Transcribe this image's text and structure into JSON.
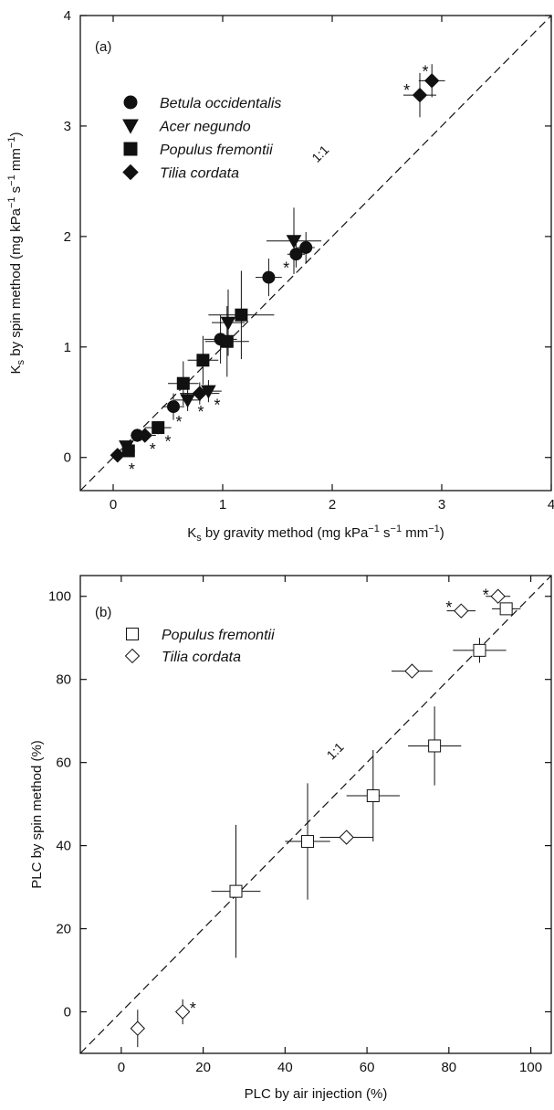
{
  "chart_data": [
    {
      "type": "scatter",
      "panel_label": "(a)",
      "xlabel": {
        "pre": "K",
        "sub": "s",
        "post": " by gravity method (mg kPa",
        "sup1": "−1",
        "mid": " s",
        "sup2": "−1",
        "end": " mm",
        "sup3": "−1",
        "close": ")"
      },
      "ylabel": {
        "pre": "K",
        "sub": "s",
        "post": " by spin method (mg kPa",
        "sup1": "−1",
        "mid": " s",
        "sup2": "−1",
        "end": " mm",
        "sup3": "−1",
        "close": ")"
      },
      "xlim": [
        -0.3,
        4
      ],
      "ylim": [
        -0.3,
        4
      ],
      "xticks": [
        0,
        1,
        2,
        3,
        4
      ],
      "yticks": [
        0,
        1,
        2,
        3,
        4
      ],
      "xtick_labels": [
        "0",
        "1",
        "2",
        "3",
        "4"
      ],
      "ytick_labels": [
        "0",
        "1",
        "2",
        "3",
        "4"
      ],
      "reference_line_label": "1:1",
      "reference_label_at": [
        1.92,
        2.72
      ],
      "legend_placement": "top-left",
      "series": [
        {
          "name": "Betula occidentalis",
          "marker": "circle-filled",
          "points": [
            {
              "x": 0.22,
              "y": 0.2,
              "xerr": 0.06,
              "yerr": 0.06
            },
            {
              "x": 0.55,
              "y": 0.46,
              "xerr": 0.1,
              "yerr": 0.12
            },
            {
              "x": 0.98,
              "y": 1.07,
              "xerr": 0.15,
              "yerr": 0.22
            },
            {
              "x": 1.42,
              "y": 1.63,
              "xerr": 0.12,
              "yerr": 0.17
            },
            {
              "x": 1.67,
              "y": 1.84,
              "xerr": 0.08,
              "yerr": 0.12
            },
            {
              "x": 1.76,
              "y": 1.9,
              "xerr": 0.08,
              "yerr": 0.14
            }
          ]
        },
        {
          "name": "Acer negundo",
          "marker": "triangle-down-filled",
          "points": [
            {
              "x": 0.12,
              "y": 0.1,
              "xerr": 0.04,
              "yerr": 0.04
            },
            {
              "x": 0.68,
              "y": 0.52,
              "xerr": 0.12,
              "yerr": 0.1
            },
            {
              "x": 0.87,
              "y": 0.6,
              "xerr": 0.12,
              "yerr": 0.1
            },
            {
              "x": 1.05,
              "y": 1.22,
              "xerr": 0.15,
              "yerr": 0.3
            },
            {
              "x": 1.65,
              "y": 1.96,
              "xerr": 0.25,
              "yerr": 0.3
            }
          ]
        },
        {
          "name": "Populus fremontii",
          "marker": "square-filled",
          "points": [
            {
              "x": 0.14,
              "y": 0.06,
              "xerr": 0.06,
              "yerr": 0.05
            },
            {
              "x": 0.41,
              "y": 0.27,
              "xerr": 0.12,
              "yerr": 0.06
            },
            {
              "x": 0.64,
              "y": 0.67,
              "xerr": 0.14,
              "yerr": 0.2
            },
            {
              "x": 0.82,
              "y": 0.88,
              "xerr": 0.14,
              "yerr": 0.22
            },
            {
              "x": 1.04,
              "y": 1.05,
              "xerr": 0.2,
              "yerr": 0.32
            },
            {
              "x": 1.17,
              "y": 1.29,
              "xerr": 0.3,
              "yerr": 0.4
            }
          ]
        },
        {
          "name": "Tilia cordata",
          "marker": "diamond-filled",
          "points": [
            {
              "x": 0.04,
              "y": 0.02,
              "xerr": 0.05,
              "yerr": 0.04
            },
            {
              "x": 0.29,
              "y": 0.2,
              "xerr": 0.1,
              "yerr": 0.05
            },
            {
              "x": 0.79,
              "y": 0.58,
              "xerr": 0.18,
              "yerr": 0.1
            },
            {
              "x": 2.8,
              "y": 3.28,
              "xerr": 0.15,
              "yerr": 0.2
            },
            {
              "x": 2.91,
              "y": 3.41,
              "xerr": 0.12,
              "yerr": 0.15
            }
          ]
        }
      ],
      "annotations": [
        {
          "text": "*",
          "x": 0.17,
          "y": -0.1
        },
        {
          "text": "*",
          "x": 0.36,
          "y": 0.08
        },
        {
          "text": "*",
          "x": 0.5,
          "y": 0.15
        },
        {
          "text": "*",
          "x": 0.6,
          "y": 0.33
        },
        {
          "text": "*",
          "x": 0.8,
          "y": 0.42
        },
        {
          "text": "*",
          "x": 0.95,
          "y": 0.48
        },
        {
          "text": "*",
          "x": 1.58,
          "y": 1.72
        },
        {
          "text": "*",
          "x": 2.68,
          "y": 3.33
        },
        {
          "text": "*",
          "x": 2.85,
          "y": 3.5
        }
      ]
    },
    {
      "type": "scatter",
      "panel_label": "(b)",
      "xlabel": "PLC by air injection (%)",
      "ylabel": "PLC by spin method (%)",
      "xlim": [
        -10,
        105
      ],
      "ylim": [
        -10,
        105
      ],
      "xticks": [
        0,
        20,
        40,
        60,
        80,
        100
      ],
      "yticks": [
        0,
        20,
        40,
        60,
        80,
        100
      ],
      "xtick_labels": [
        "0",
        "20",
        "40",
        "60",
        "80",
        "100"
      ],
      "ytick_labels": [
        "0",
        "20",
        "40",
        "60",
        "80",
        "100"
      ],
      "reference_line_label": "1:1",
      "reference_label_at": [
        53,
        62
      ],
      "legend_placement": "top-left",
      "series": [
        {
          "name": "Populus fremontii",
          "marker": "square-open",
          "points": [
            {
              "x": 28,
              "y": 29,
              "xerr": 6,
              "yerr": 16
            },
            {
              "x": 45.5,
              "y": 41,
              "xerr": 5.5,
              "yerr": 14
            },
            {
              "x": 61.5,
              "y": 52,
              "xerr": 6.5,
              "yerr": 11
            },
            {
              "x": 76.5,
              "y": 64,
              "xerr": 6.5,
              "yerr": 9.5
            },
            {
              "x": 87.5,
              "y": 87,
              "xerr": 6.5,
              "yerr": 3
            },
            {
              "x": 94,
              "y": 97,
              "xerr": 3.5,
              "yerr": 1.5
            }
          ]
        },
        {
          "name": "Tilia cordata",
          "marker": "diamond-open",
          "points": [
            {
              "x": 4,
              "y": -4,
              "xerr": 0,
              "yerr": 4.5
            },
            {
              "x": 15,
              "y": 0,
              "xerr": 0,
              "yerr": 3
            },
            {
              "x": 55,
              "y": 42,
              "xerr": 6.5,
              "yerr": 1
            },
            {
              "x": 71,
              "y": 82,
              "xerr": 5,
              "yerr": 0
            },
            {
              "x": 83,
              "y": 96.5,
              "xerr": 3.5,
              "yerr": 0
            },
            {
              "x": 92,
              "y": 100,
              "xerr": 3,
              "yerr": 0
            }
          ]
        }
      ],
      "annotations": [
        {
          "text": "*",
          "x": 17.5,
          "y": 1
        },
        {
          "text": "*",
          "x": 80,
          "y": 97.5
        },
        {
          "text": "*",
          "x": 89,
          "y": 100.5
        }
      ]
    }
  ]
}
